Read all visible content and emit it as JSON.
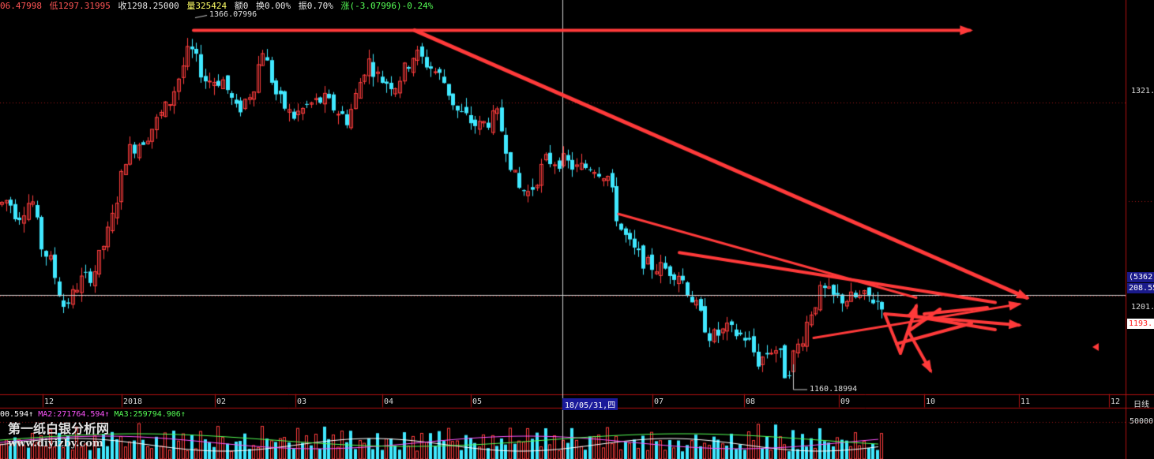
{
  "info": {
    "open": "06.47998",
    "low": "低1297.31995",
    "close": "收1298.25000",
    "volume": "量325424",
    "amount": "额0",
    "turnover": "换0.00%",
    "amplitude": "振0.70%",
    "change": "涨(-3.07996)-0.24%",
    "colors": {
      "open": "#ff5555",
      "low": "#ff5555",
      "close": "#eeeeee",
      "volume": "#ffff66",
      "other": "#eeeeee"
    }
  },
  "ma": {
    "ma1": "00.594↑",
    "ma2": "MA2:271764.594↑",
    "ma3": "MA3:259794.906↑",
    "colors": {
      "ma1": "#ffffff",
      "ma2": "#ff55ff",
      "ma3": "#55ff55"
    }
  },
  "watermark": {
    "line1": "第一纸白银分析网",
    "line2": "www.diyizby.com"
  },
  "right_axis": {
    "tick_1321": "1321.",
    "tick_1201": "1201.",
    "current_price": "1193.",
    "crosshair_value": "208.55",
    "crosshair_vol": "(5362",
    "volume_tick": "50000",
    "period": "日线"
  },
  "crosshair": {
    "date_label": "18/05/31,四"
  },
  "annotations": {
    "high": "1366.07996",
    "low": "1160.18994"
  },
  "chart_data": {
    "type": "candlestick",
    "title": "",
    "xlabel": "",
    "ylabel": "",
    "x_ticks": [
      "12",
      "2018",
      "02",
      "03",
      "04",
      "05",
      "07",
      "08",
      "09",
      "10",
      "11",
      "12"
    ],
    "y_ticks": [
      1321,
      1201
    ],
    "ylim": [
      1140,
      1377
    ],
    "volume_ylim": [
      0,
      200000
    ],
    "grid": false,
    "up_color": "#ff3d3d",
    "down_color": "#40e8ff",
    "trend_color": "#ff3a3a",
    "ohlc_anchors": [
      [
        0,
        1258
      ],
      [
        10,
        1261
      ],
      [
        22,
        1250
      ],
      [
        40,
        1262
      ],
      [
        52,
        1232
      ],
      [
        64,
        1222
      ],
      [
        80,
        1195
      ],
      [
        90,
        1200
      ],
      [
        100,
        1210
      ],
      [
        118,
        1215
      ],
      [
        140,
        1245
      ],
      [
        160,
        1290
      ],
      [
        185,
        1300
      ],
      [
        215,
        1322
      ],
      [
        240,
        1355
      ],
      [
        260,
        1335
      ],
      [
        282,
        1335
      ],
      [
        300,
        1315
      ],
      [
        320,
        1330
      ],
      [
        332,
        1355
      ],
      [
        350,
        1325
      ],
      [
        370,
        1312
      ],
      [
        392,
        1320
      ],
      [
        410,
        1323
      ],
      [
        440,
        1310
      ],
      [
        465,
        1348
      ],
      [
        480,
        1336
      ],
      [
        500,
        1332
      ],
      [
        525,
        1352
      ],
      [
        545,
        1343
      ],
      [
        560,
        1336
      ],
      [
        578,
        1316
      ],
      [
        605,
        1306
      ],
      [
        630,
        1313
      ],
      [
        655,
        1268
      ],
      [
        670,
        1265
      ],
      [
        690,
        1285
      ],
      [
        712,
        1285
      ],
      [
        730,
        1280
      ],
      [
        750,
        1282
      ],
      [
        770,
        1275
      ],
      [
        783,
        1245
      ],
      [
        800,
        1230
      ],
      [
        820,
        1220
      ],
      [
        840,
        1218
      ],
      [
        860,
        1215
      ],
      [
        880,
        1195
      ],
      [
        900,
        1175
      ],
      [
        920,
        1180
      ],
      [
        945,
        1175
      ],
      [
        960,
        1160
      ],
      [
        975,
        1168
      ],
      [
        985,
        1168
      ],
      [
        995,
        1150
      ],
      [
        1003,
        1163
      ],
      [
        1015,
        1175
      ],
      [
        1025,
        1190
      ],
      [
        1040,
        1205
      ],
      [
        1055,
        1200
      ],
      [
        1070,
        1199
      ],
      [
        1085,
        1200
      ],
      [
        1100,
        1200
      ],
      [
        1115,
        1197
      ]
    ],
    "volume_levels": [
      0.35,
      0.62,
      0.41,
      0.8,
      0.46,
      0.55,
      0.38,
      0.92,
      0.5,
      0.66,
      0.3,
      0.72,
      0.44,
      0.58
    ],
    "trend_lines": [
      {
        "from": [
          245,
          1366
        ],
        "to": [
          1228,
          1366
        ],
        "width": 4,
        "arrow": true
      },
      {
        "from": [
          525,
          1366
        ],
        "to": [
          1300,
          1200
        ],
        "width": 5,
        "arrow": true
      },
      {
        "from": [
          783,
          1252
        ],
        "to": [
          1160,
          1200
        ],
        "width": 3,
        "arrow": false
      },
      {
        "from": [
          860,
          1228
        ],
        "to": [
          1260,
          1197
        ],
        "width": 4,
        "arrow": false
      },
      {
        "from": [
          1030,
          1175
        ],
        "to": [
          1290,
          1196
        ],
        "width": 3,
        "arrow": true
      },
      {
        "from": [
          1120,
          1190
        ],
        "to": [
          1290,
          1183
        ],
        "width": 4,
        "arrow": true
      }
    ]
  }
}
